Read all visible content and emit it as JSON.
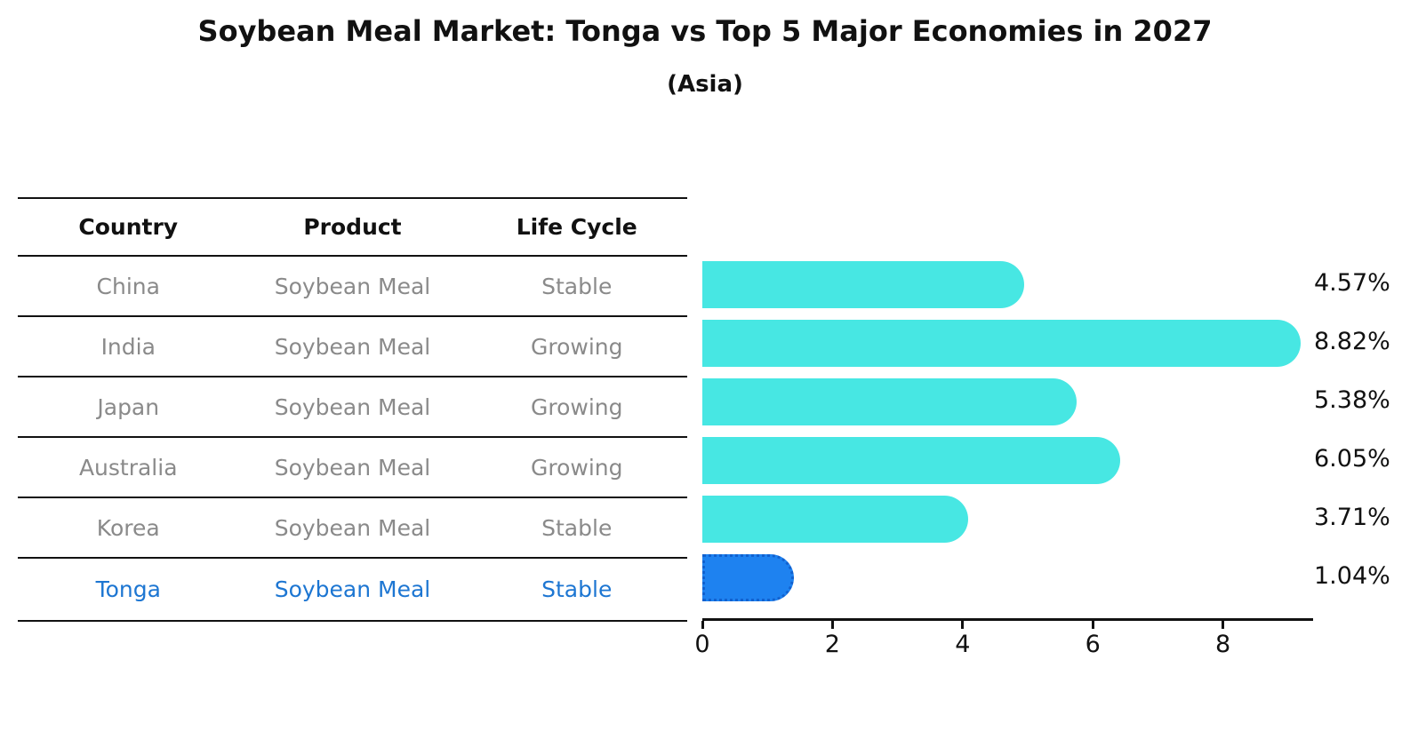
{
  "header": {
    "title": "Soybean Meal Market: Tonga vs Top 5 Major Economies in 2027",
    "subtitle": "(Asia)"
  },
  "table": {
    "headers": [
      "Country",
      "Product",
      "Life Cycle"
    ],
    "rows": [
      {
        "country": "China",
        "product": "Soybean Meal",
        "life_cycle": "Stable",
        "highlight": false
      },
      {
        "country": "India",
        "product": "Soybean Meal",
        "life_cycle": "Growing",
        "highlight": false
      },
      {
        "country": "Japan",
        "product": "Soybean Meal",
        "life_cycle": "Growing",
        "highlight": false
      },
      {
        "country": "Australia",
        "product": "Soybean Meal",
        "life_cycle": "Growing",
        "highlight": false
      },
      {
        "country": "Korea",
        "product": "Soybean Meal",
        "life_cycle": "Stable",
        "highlight": false
      },
      {
        "country": "Tonga",
        "product": "Soybean Meal",
        "life_cycle": "Stable",
        "highlight": true
      }
    ]
  },
  "chart_data": {
    "type": "bar",
    "orientation": "horizontal",
    "title": "Soybean Meal Market: Tonga vs Top 5 Major Economies in 2027",
    "subtitle": "(Asia)",
    "categories": [
      "China",
      "India",
      "Japan",
      "Australia",
      "Korea",
      "Tonga"
    ],
    "values": [
      4.57,
      8.82,
      5.38,
      6.05,
      3.71,
      1.04
    ],
    "value_labels": [
      "4.57%",
      "8.82%",
      "5.38%",
      "6.05%",
      "3.71%",
      "1.04%"
    ],
    "x_ticks": [
      "0",
      "2",
      "4",
      "6",
      "8"
    ],
    "xlim": [
      0,
      9.34
    ],
    "grid": false,
    "legend": false,
    "highlight_index": 5,
    "bar_color": "#47E7E3",
    "highlight_bar_color": "#1E82F0",
    "highlight_text_color": "#1D76D2"
  },
  "colors": {
    "bar_cyan": "#47E7E3",
    "bar_blue": "#1E82F0",
    "text_blue": "#1D76D2",
    "text_gray": "#8A8A8A",
    "axis_black": "#111111"
  }
}
